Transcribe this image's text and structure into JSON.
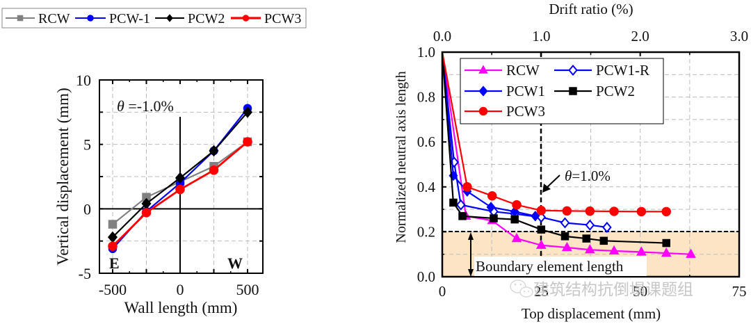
{
  "chart_data": [
    {
      "type": "line",
      "title": "",
      "xlabel": "Wall length (mm)",
      "ylabel": "Vertical displacement (mm)",
      "xlim": [
        -600,
        600
      ],
      "ylim": [
        -5,
        10
      ],
      "x_ticks": [
        -500,
        0,
        500
      ],
      "x_tick_labels": [
        "-500",
        "0",
        "500"
      ],
      "y_ticks": [
        -5,
        0,
        5,
        10
      ],
      "y_tick_labels": [
        "-5",
        "0",
        "5",
        "10"
      ],
      "grid": true,
      "legend_position": "top (outside, above plot)",
      "annotations": {
        "theta_symbol": "θ",
        "theta_text": " =-1.0%",
        "left_end": "E",
        "right_end": "W"
      },
      "x": [
        -500,
        -250,
        0,
        250,
        500
      ],
      "series": [
        {
          "name": "RCW",
          "color": "#808080",
          "marker": "square",
          "values": [
            -1.2,
            0.9,
            2.1,
            3.3,
            5.2
          ]
        },
        {
          "name": "PCW-1",
          "color": "#0000ff",
          "marker": "circle",
          "values": [
            -3.1,
            -0.2,
            2.0,
            4.5,
            7.8
          ]
        },
        {
          "name": "PCW2",
          "color": "#000000",
          "marker": "diamond",
          "values": [
            -2.2,
            0.4,
            2.4,
            4.5,
            7.5
          ]
        },
        {
          "name": "PCW3",
          "color": "#ff0000",
          "marker": "circle",
          "values": [
            -2.9,
            -0.3,
            1.5,
            3.0,
            5.2
          ]
        }
      ]
    },
    {
      "type": "line",
      "title": "",
      "xlabel": "Top displacement (mm)",
      "ylabel": "Normalized neutral axis length",
      "x2label": "Drift ratio (%)",
      "xlim": [
        0,
        75
      ],
      "ylim": [
        0,
        1.0
      ],
      "x2lim": [
        0,
        3.0
      ],
      "x_ticks": [
        0,
        25,
        50,
        75
      ],
      "x_tick_labels": [
        "0",
        "25",
        "50",
        "75"
      ],
      "x2_ticks": [
        0,
        1,
        2,
        3
      ],
      "x2_tick_labels": [
        "0.0",
        "1.0",
        "2.0",
        "3.0"
      ],
      "y_ticks": [
        0,
        0.2,
        0.4,
        0.6,
        0.8,
        1.0
      ],
      "y_tick_labels": [
        "0.0",
        "0.2",
        "0.4",
        "0.6",
        "0.8",
        "1.0"
      ],
      "grid": true,
      "legend_position": "top-left (inside)",
      "annotations": {
        "theta_symbol": "θ",
        "theta_text": "=1.0%",
        "theta_line_x": 25,
        "boundary_label": "Boundary element length",
        "boundary_y": 0.2,
        "boundary_fill": "#fce4c4"
      },
      "series": [
        {
          "name": "RCW",
          "color": "#ff00ff",
          "marker": "triangle",
          "filled": true,
          "x": [
            0,
            6,
            12.6,
            18.8,
            25,
            31.5,
            37.3,
            43.4,
            50.3,
            56.6,
            62.8
          ],
          "y": [
            1.0,
            0.27,
            0.25,
            0.17,
            0.14,
            0.13,
            0.12,
            0.115,
            0.11,
            0.105,
            0.1
          ]
        },
        {
          "name": "PCW1-R",
          "color": "#0000ff",
          "marker": "diamond",
          "filled": false,
          "x": [
            0,
            3,
            4.7,
            13,
            18.3,
            25,
            31,
            37.3,
            41.6
          ],
          "y": [
            1.0,
            0.51,
            0.32,
            0.29,
            0.28,
            0.265,
            0.24,
            0.23,
            0.22
          ]
        },
        {
          "name": "PCW1",
          "color": "#0000ff",
          "marker": "diamond",
          "filled": true,
          "x": [
            0,
            2.8,
            6.3,
            12.3,
            18.3,
            23.5
          ],
          "y": [
            1.0,
            0.45,
            0.38,
            0.31,
            0.29,
            0.27
          ]
        },
        {
          "name": "PCW2",
          "color": "#000000",
          "marker": "square",
          "filled": true,
          "x": [
            0,
            2.8,
            5.1,
            13,
            18.3,
            25,
            31,
            36.4,
            40.8,
            56.6
          ],
          "y": [
            1.0,
            0.33,
            0.27,
            0.26,
            0.255,
            0.21,
            0.18,
            0.17,
            0.16,
            0.15
          ]
        },
        {
          "name": "PCW3",
          "color": "#ff0000",
          "marker": "circle",
          "filled": true,
          "x": [
            0,
            6.3,
            12.6,
            18.8,
            25,
            31.5,
            37.3,
            43.4,
            50.3,
            56.6
          ],
          "y": [
            1.0,
            0.4,
            0.36,
            0.32,
            0.295,
            0.293,
            0.292,
            0.291,
            0.29,
            0.29
          ]
        }
      ]
    }
  ],
  "watermark": {
    "text": "建筑结构抗倒塌课题组",
    "icon": "wechat-icon"
  }
}
